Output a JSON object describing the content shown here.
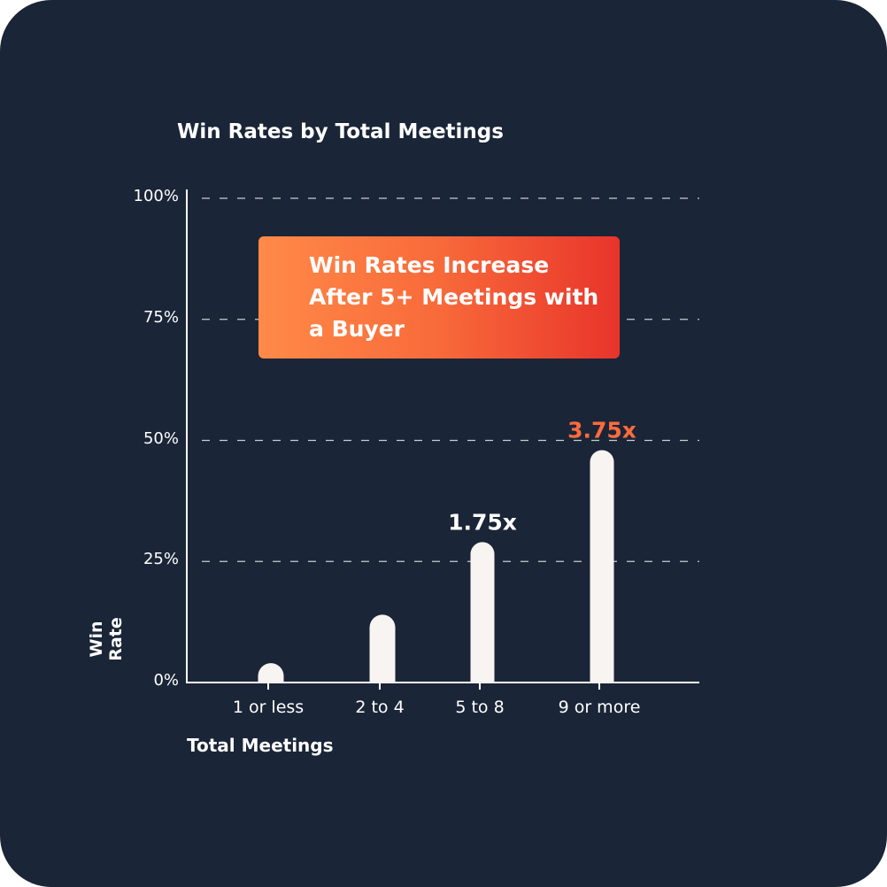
{
  "chart_data": {
    "type": "bar",
    "title": "Win Rates by Total Meetings",
    "xlabel": "Total Meetings",
    "ylabel": "Win Rate",
    "categories": [
      "1 or less",
      "2 to 4",
      "5 to 8",
      "9 or more"
    ],
    "values": [
      4,
      14,
      29,
      48
    ],
    "data_labels": [
      "",
      "",
      "1.75x",
      "3.75x"
    ],
    "data_label_colors": [
      "#ffffff",
      "#ffffff",
      "#ffffff",
      "#ff6b3d"
    ],
    "ylim": [
      0,
      100
    ],
    "yticks": [
      0,
      25,
      50,
      75,
      100
    ],
    "ytick_labels": [
      "0%",
      "25%",
      "50%",
      "75%",
      "100%"
    ],
    "grid": true,
    "annotation": "Win Rates Increase After 5+ Meetings with a Buyer",
    "colors": {
      "background": "#1a2537",
      "bar": "#f7f4f1",
      "accent": "#ff6b3d",
      "callout_start": "#ff8a48",
      "callout_end": "#e8342b"
    }
  }
}
